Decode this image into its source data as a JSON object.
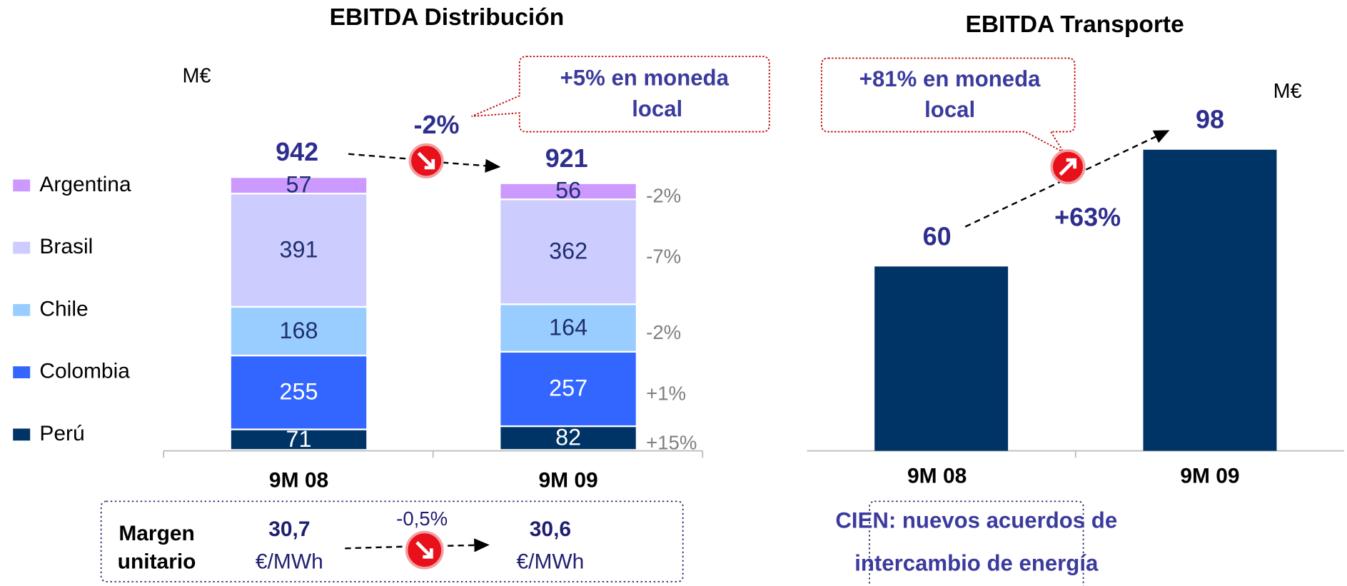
{
  "chart_data": [
    {
      "type": "stacked_bar",
      "title": "EBITDA Distribución",
      "unit": "M€",
      "categories": [
        "9M 08",
        "9M 09"
      ],
      "series": [
        {
          "name": "Perú",
          "color": "#003366",
          "label_color": "#ffffff",
          "values": [
            71,
            82
          ],
          "change": "+15%"
        },
        {
          "name": "Colombia",
          "color": "#3366ff",
          "label_color": "#ffffff",
          "values": [
            255,
            257
          ],
          "change": "+1%"
        },
        {
          "name": "Chile",
          "color": "#99ccff",
          "label_color": "#1f2f6f",
          "values": [
            168,
            164
          ],
          "change": "-2%"
        },
        {
          "name": "Brasil",
          "color": "#ccccff",
          "label_color": "#1f2f6f",
          "values": [
            391,
            362
          ],
          "change": "-7%"
        },
        {
          "name": "Argentina",
          "color": "#cc99ff",
          "label_color": "#1f2f6f",
          "values": [
            57,
            56
          ],
          "change": "-2%"
        }
      ],
      "totals": [
        942,
        921
      ],
      "total_change": "-2%",
      "callout": [
        "+5% en moneda",
        "local"
      ],
      "footer": {
        "label": [
          "Margen",
          "unitario"
        ],
        "items": [
          {
            "value": "30,7",
            "unit": "€/MWh"
          },
          {
            "value": "30,6",
            "unit": "€/MWh"
          }
        ],
        "change": "-0,5%"
      }
    },
    {
      "type": "bar",
      "title": "EBITDA Transporte",
      "unit": "M€",
      "categories": [
        "9M 08",
        "9M 09"
      ],
      "values": [
        60,
        98
      ],
      "color": "#003366",
      "change": "+63%",
      "callout": [
        "+81% en moneda",
        "local"
      ],
      "footer": [
        "CIEN: nuevos acuerdos de",
        "intercambio de energía"
      ]
    }
  ]
}
